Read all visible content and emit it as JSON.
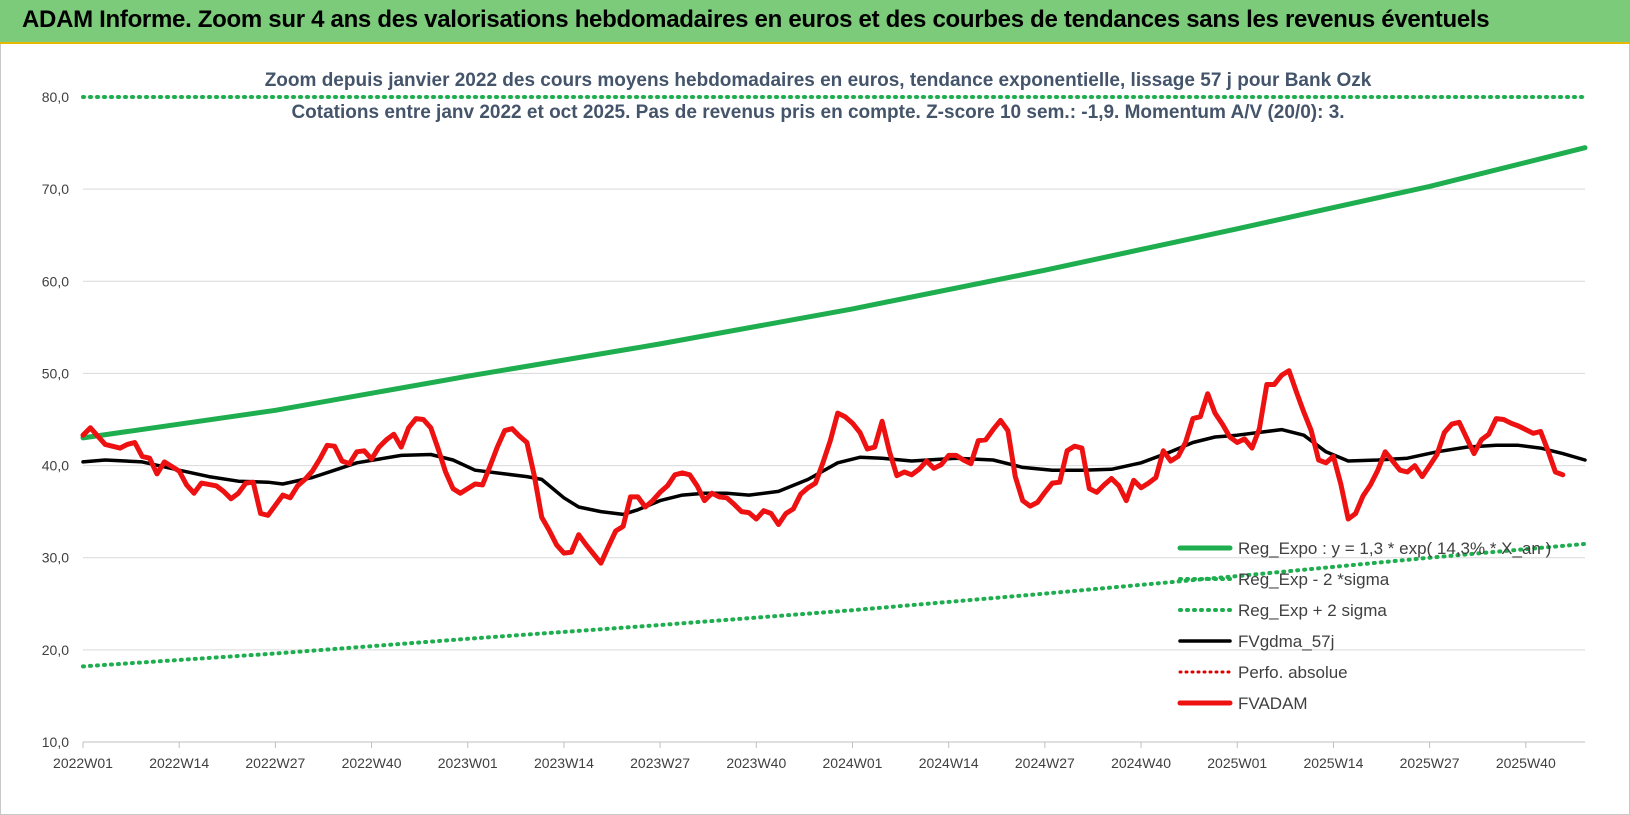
{
  "banner": {
    "title": "ADAM Informe. Zoom sur 4 ans des valorisations hebdomadaires en euros et des courbes de tendances sans les revenus éventuels"
  },
  "colors": {
    "banner_bg": "#7ccb7a",
    "banner_border": "#e6b800",
    "reg_expo": "#1fae4f",
    "reg_sigma": "#1fae4f",
    "fvgdma": "#000000",
    "perfo": "#e00000",
    "fvadam": "#ee1111",
    "subtitle": "#44546a"
  },
  "chart_data": {
    "type": "line",
    "title": "Zoom depuis janvier 2022 des cours moyens hebdomadaires en euros, tendance exponentielle, lissage 57 j pour Bank Ozk",
    "subtitle": "Cotations entre janv 2022 et oct 2025. Pas de revenus pris en compte. Z-score 10 sem.: -1,9. Momentum A/V (20/0): 3.",
    "ylim": [
      10,
      80
    ],
    "yticks": [
      "80,0",
      "70,0",
      "60,0",
      "50,0",
      "40,0",
      "30,0",
      "20,0",
      "10,0"
    ],
    "ytick_values": [
      80,
      70,
      60,
      50,
      40,
      30,
      20,
      10
    ],
    "xticks": [
      "2022W01",
      "2022W14",
      "2022W27",
      "2022W40",
      "2023W01",
      "2023W14",
      "2023W27",
      "2023W40",
      "2024W01",
      "2024W14",
      "2024W27",
      "2024W40",
      "2025W01",
      "2025W14",
      "2025W27",
      "2025W40"
    ],
    "xtick_index": [
      0,
      13,
      26,
      39,
      52,
      65,
      78,
      91,
      104,
      117,
      130,
      143,
      156,
      169,
      182,
      195
    ],
    "n_weeks": 203,
    "grid": true,
    "legend_position": "bottom-right",
    "series": [
      {
        "name": "Reg_Expo : y = 1,3 * exp( 14,3% * X_an )",
        "style": "solid-thick",
        "values": [
          [
            0,
            43.0
          ],
          [
            26,
            46.0
          ],
          [
            52,
            49.7
          ],
          [
            78,
            53.2
          ],
          [
            104,
            57.0
          ],
          [
            130,
            61.2
          ],
          [
            156,
            65.7
          ],
          [
            182,
            70.3
          ],
          [
            203,
            74.5
          ]
        ]
      },
      {
        "name": "Reg_Exp - 2 *sigma",
        "style": "dotted",
        "values": [
          [
            0,
            18.2
          ],
          [
            26,
            19.6
          ],
          [
            52,
            21.2
          ],
          [
            78,
            22.7
          ],
          [
            104,
            24.3
          ],
          [
            130,
            26.1
          ],
          [
            156,
            28.0
          ],
          [
            182,
            30.0
          ],
          [
            203,
            31.5
          ]
        ]
      },
      {
        "name": "Reg_Exp + 2 sigma",
        "style": "dotted",
        "values": [
          [
            0,
            80.0
          ],
          [
            26,
            80.0
          ],
          [
            176,
            80.0
          ],
          [
            203,
            80.0
          ]
        ]
      },
      {
        "name": "FVgdma_57j",
        "style": "solid",
        "values": [
          [
            0,
            40.4
          ],
          [
            3,
            40.6
          ],
          [
            8,
            40.4
          ],
          [
            13,
            39.5
          ],
          [
            17,
            38.8
          ],
          [
            21,
            38.3
          ],
          [
            25,
            38.2
          ],
          [
            27,
            38.0
          ],
          [
            31,
            38.7
          ],
          [
            34,
            39.5
          ],
          [
            37,
            40.3
          ],
          [
            40,
            40.7
          ],
          [
            43,
            41.1
          ],
          [
            47,
            41.2
          ],
          [
            50,
            40.6
          ],
          [
            53,
            39.5
          ],
          [
            57,
            39.1
          ],
          [
            60,
            38.8
          ],
          [
            62,
            38.5
          ],
          [
            65,
            36.5
          ],
          [
            67,
            35.5
          ],
          [
            70,
            35.0
          ],
          [
            73,
            34.7
          ],
          [
            75,
            35.2
          ],
          [
            78,
            36.2
          ],
          [
            81,
            36.8
          ],
          [
            84,
            37.0
          ],
          [
            87,
            37.0
          ],
          [
            90,
            36.8
          ],
          [
            94,
            37.2
          ],
          [
            98,
            38.5
          ],
          [
            102,
            40.3
          ],
          [
            105,
            40.9
          ],
          [
            108,
            40.8
          ],
          [
            112,
            40.5
          ],
          [
            118,
            40.8
          ],
          [
            123,
            40.6
          ],
          [
            127,
            39.8
          ],
          [
            131,
            39.5
          ],
          [
            135,
            39.5
          ],
          [
            139,
            39.6
          ],
          [
            143,
            40.3
          ],
          [
            147,
            41.5
          ],
          [
            150,
            42.5
          ],
          [
            153,
            43.1
          ],
          [
            156,
            43.3
          ],
          [
            159,
            43.6
          ],
          [
            162,
            43.9
          ],
          [
            165,
            43.3
          ],
          [
            168,
            41.5
          ],
          [
            171,
            40.5
          ],
          [
            175,
            40.6
          ],
          [
            179,
            40.8
          ],
          [
            183,
            41.5
          ],
          [
            187,
            42.0
          ],
          [
            191,
            42.2
          ],
          [
            194,
            42.2
          ],
          [
            197,
            41.9
          ],
          [
            200,
            41.3
          ],
          [
            203,
            40.6
          ]
        ]
      },
      {
        "name": "Perfo. absolue",
        "style": "dotted",
        "values": []
      },
      {
        "name": "FVADAM",
        "style": "solid-thick",
        "values": [
          [
            0,
            43.3
          ],
          [
            1,
            44.1
          ],
          [
            3,
            42.3
          ],
          [
            5,
            41.9
          ],
          [
            6,
            42.3
          ],
          [
            7,
            42.5
          ],
          [
            8,
            41.0
          ],
          [
            9,
            40.8
          ],
          [
            10,
            39.1
          ],
          [
            11,
            40.4
          ],
          [
            12,
            39.9
          ],
          [
            13,
            39.4
          ],
          [
            14,
            37.9
          ],
          [
            15,
            37.0
          ],
          [
            16,
            38.1
          ],
          [
            18,
            37.8
          ],
          [
            19,
            37.2
          ],
          [
            20,
            36.4
          ],
          [
            21,
            37.0
          ],
          [
            22,
            38.1
          ],
          [
            23,
            38.2
          ],
          [
            24,
            34.8
          ],
          [
            25,
            34.6
          ],
          [
            26,
            35.7
          ],
          [
            27,
            36.8
          ],
          [
            28,
            36.5
          ],
          [
            29,
            37.8
          ],
          [
            30,
            38.5
          ],
          [
            31,
            39.4
          ],
          [
            32,
            40.7
          ],
          [
            33,
            42.2
          ],
          [
            34,
            42.1
          ],
          [
            35,
            40.5
          ],
          [
            36,
            40.2
          ],
          [
            37,
            41.5
          ],
          [
            38,
            41.6
          ],
          [
            39,
            40.7
          ],
          [
            40,
            42.0
          ],
          [
            41,
            42.8
          ],
          [
            42,
            43.4
          ],
          [
            43,
            42.0
          ],
          [
            44,
            44.1
          ],
          [
            45,
            45.1
          ],
          [
            46,
            45.0
          ],
          [
            47,
            44.1
          ],
          [
            48,
            41.8
          ],
          [
            49,
            39.3
          ],
          [
            50,
            37.5
          ],
          [
            51,
            37.0
          ],
          [
            53,
            38.0
          ],
          [
            54,
            37.9
          ],
          [
            55,
            39.9
          ],
          [
            56,
            42.0
          ],
          [
            57,
            43.8
          ],
          [
            58,
            44.0
          ],
          [
            59,
            43.2
          ],
          [
            60,
            42.5
          ],
          [
            61,
            38.9
          ],
          [
            62,
            34.4
          ],
          [
            63,
            33.0
          ],
          [
            64,
            31.4
          ],
          [
            65,
            30.5
          ],
          [
            66,
            30.6
          ],
          [
            67,
            32.5
          ],
          [
            68,
            31.4
          ],
          [
            69,
            30.4
          ],
          [
            70,
            29.4
          ],
          [
            71,
            31.2
          ],
          [
            72,
            32.9
          ],
          [
            73,
            33.4
          ],
          [
            74,
            36.6
          ],
          [
            75,
            36.6
          ],
          [
            76,
            35.5
          ],
          [
            77,
            36.2
          ],
          [
            78,
            37.1
          ],
          [
            79,
            37.8
          ],
          [
            80,
            39.0
          ],
          [
            81,
            39.2
          ],
          [
            82,
            39.0
          ],
          [
            83,
            37.8
          ],
          [
            84,
            36.2
          ],
          [
            85,
            37.0
          ],
          [
            86,
            36.6
          ],
          [
            87,
            36.5
          ],
          [
            88,
            35.8
          ],
          [
            89,
            35.0
          ],
          [
            90,
            34.9
          ],
          [
            91,
            34.2
          ],
          [
            92,
            35.1
          ],
          [
            93,
            34.8
          ],
          [
            94,
            33.6
          ],
          [
            95,
            34.8
          ],
          [
            96,
            35.3
          ],
          [
            97,
            36.9
          ],
          [
            98,
            37.6
          ],
          [
            99,
            38.1
          ],
          [
            100,
            40.3
          ],
          [
            101,
            42.7
          ],
          [
            102,
            45.7
          ],
          [
            103,
            45.3
          ],
          [
            104,
            44.6
          ],
          [
            105,
            43.6
          ],
          [
            106,
            41.8
          ],
          [
            107,
            42.0
          ],
          [
            108,
            44.8
          ],
          [
            109,
            41.5
          ],
          [
            110,
            38.9
          ],
          [
            111,
            39.3
          ],
          [
            112,
            39.0
          ],
          [
            113,
            39.6
          ],
          [
            114,
            40.5
          ],
          [
            115,
            39.7
          ],
          [
            116,
            40.1
          ],
          [
            117,
            41.1
          ],
          [
            118,
            41.1
          ],
          [
            119,
            40.6
          ],
          [
            120,
            40.2
          ],
          [
            121,
            42.7
          ],
          [
            122,
            42.8
          ],
          [
            123,
            43.9
          ],
          [
            124,
            44.9
          ],
          [
            125,
            43.8
          ],
          [
            126,
            38.8
          ],
          [
            127,
            36.2
          ],
          [
            128,
            35.6
          ],
          [
            129,
            36.0
          ],
          [
            130,
            37.1
          ],
          [
            131,
            38.1
          ],
          [
            132,
            38.2
          ],
          [
            133,
            41.6
          ],
          [
            134,
            42.1
          ],
          [
            135,
            41.9
          ],
          [
            136,
            37.5
          ],
          [
            137,
            37.1
          ],
          [
            138,
            37.9
          ],
          [
            139,
            38.6
          ],
          [
            140,
            37.8
          ],
          [
            141,
            36.2
          ],
          [
            142,
            38.4
          ],
          [
            143,
            37.6
          ],
          [
            144,
            38.1
          ],
          [
            145,
            38.7
          ],
          [
            146,
            41.6
          ],
          [
            147,
            40.5
          ],
          [
            148,
            41.0
          ],
          [
            149,
            42.5
          ],
          [
            150,
            45.1
          ],
          [
            151,
            45.3
          ],
          [
            152,
            47.8
          ],
          [
            153,
            45.7
          ],
          [
            154,
            44.5
          ],
          [
            155,
            43.1
          ],
          [
            156,
            42.5
          ],
          [
            157,
            42.9
          ],
          [
            158,
            41.9
          ],
          [
            159,
            44.0
          ],
          [
            160,
            48.8
          ],
          [
            161,
            48.8
          ],
          [
            162,
            49.8
          ],
          [
            163,
            50.3
          ],
          [
            164,
            48.0
          ],
          [
            165,
            45.8
          ],
          [
            166,
            43.8
          ],
          [
            167,
            40.6
          ],
          [
            168,
            40.3
          ],
          [
            169,
            41.0
          ],
          [
            170,
            38.0
          ],
          [
            171,
            34.2
          ],
          [
            172,
            34.8
          ],
          [
            173,
            36.7
          ],
          [
            174,
            37.9
          ],
          [
            175,
            39.5
          ],
          [
            176,
            41.5
          ],
          [
            177,
            40.5
          ],
          [
            178,
            39.5
          ],
          [
            179,
            39.3
          ],
          [
            180,
            40.0
          ],
          [
            181,
            38.8
          ],
          [
            182,
            40.0
          ],
          [
            183,
            41.2
          ],
          [
            184,
            43.6
          ],
          [
            185,
            44.5
          ],
          [
            186,
            44.7
          ],
          [
            187,
            43.0
          ],
          [
            188,
            41.3
          ],
          [
            189,
            42.8
          ],
          [
            190,
            43.4
          ],
          [
            191,
            45.1
          ],
          [
            192,
            45.0
          ],
          [
            193,
            44.6
          ],
          [
            194,
            44.3
          ],
          [
            195,
            43.9
          ],
          [
            196,
            43.5
          ],
          [
            197,
            43.7
          ],
          [
            198,
            41.6
          ],
          [
            199,
            39.3
          ],
          [
            200,
            39.0
          ]
        ]
      }
    ]
  }
}
